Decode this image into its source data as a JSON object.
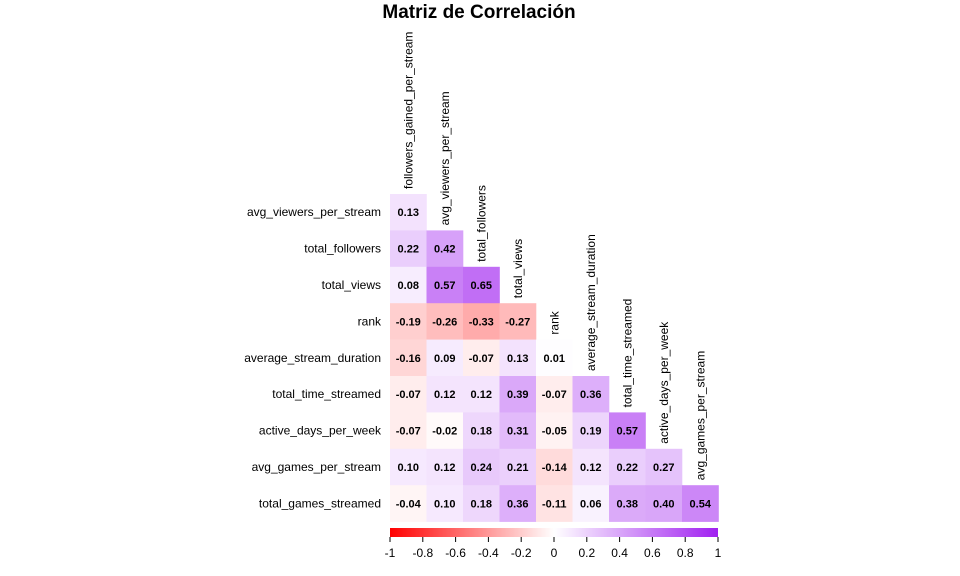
{
  "chart_data": {
    "type": "heatmap",
    "title": "Matriz de Correlación",
    "row_labels": [
      "avg_viewers_per_stream",
      "total_followers",
      "total_views",
      "rank",
      "average_stream_duration",
      "total_time_streamed",
      "active_days_per_week",
      "avg_games_per_stream",
      "total_games_streamed"
    ],
    "column_labels": [
      "followers_gained_per_stream",
      "avg_viewers_per_stream",
      "total_followers",
      "total_views",
      "rank",
      "average_stream_duration",
      "total_time_streamed",
      "active_days_per_week",
      "avg_games_per_stream"
    ],
    "values": [
      [
        0.13
      ],
      [
        0.22,
        0.42
      ],
      [
        0.08,
        0.57,
        0.65
      ],
      [
        -0.19,
        -0.26,
        -0.33,
        -0.27
      ],
      [
        -0.16,
        0.09,
        -0.07,
        0.13,
        0.01
      ],
      [
        -0.07,
        0.12,
        0.12,
        0.39,
        -0.07,
        0.36
      ],
      [
        -0.07,
        -0.02,
        0.18,
        0.31,
        -0.05,
        0.19,
        0.57
      ],
      [
        0.1,
        0.12,
        0.24,
        0.21,
        -0.14,
        0.12,
        0.22,
        0.27
      ],
      [
        -0.04,
        0.1,
        0.18,
        0.36,
        -0.11,
        0.06,
        0.38,
        0.4,
        0.54
      ]
    ],
    "value_labels": [
      [
        "0.13"
      ],
      [
        "0.22",
        "0.42"
      ],
      [
        "0.08",
        "0.57",
        "0.65"
      ],
      [
        "-0.19",
        "-0.26",
        "-0.33",
        "-0.27"
      ],
      [
        "-0.16",
        "0.09",
        "-0.07",
        "0.13",
        "0.01"
      ],
      [
        "-0.07",
        "0.12",
        "0.12",
        "0.39",
        "-0.07",
        "0.36"
      ],
      [
        "-0.07",
        "-0.02",
        "0.18",
        "0.31",
        "-0.05",
        "0.19",
        "0.57"
      ],
      [
        "0.10",
        "0.12",
        "0.24",
        "0.21",
        "-0.14",
        "0.12",
        "0.22",
        "0.27"
      ],
      [
        "-0.04",
        "0.10",
        "0.18",
        "0.36",
        "-0.11",
        "0.06",
        "0.38",
        "0.40",
        "0.54"
      ]
    ],
    "color_scale": {
      "low": "#ff0000",
      "mid": "#ffffff",
      "high": "#a020f0",
      "range": [
        -1,
        1
      ]
    },
    "legend": {
      "placement": "bottom",
      "ticks": [
        -1,
        -0.8,
        -0.6,
        -0.4,
        -0.2,
        0,
        0.2,
        0.4,
        0.6,
        0.8,
        1
      ],
      "tick_labels": [
        "-1",
        "-0.8",
        "-0.6",
        "-0.4",
        "-0.2",
        "0",
        "0.2",
        "0.4",
        "0.6",
        "0.8",
        "1"
      ]
    }
  }
}
